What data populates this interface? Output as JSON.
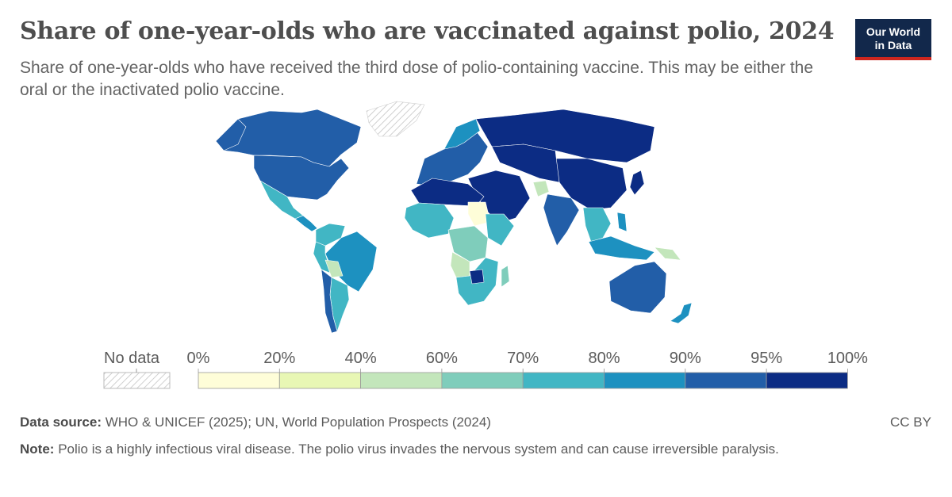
{
  "header": {
    "title": "Share of one-year-olds who are vaccinated against polio, 2024",
    "subtitle": "Share of one-year-olds who have received the third dose of polio-containing vaccine. This may be either the oral or the inactivated polio vaccine."
  },
  "logo": {
    "line1": "Our World",
    "line2": "in Data"
  },
  "legend": {
    "no_data_label": "No data",
    "ticks": [
      "0%",
      "20%",
      "40%",
      "60%",
      "70%",
      "80%",
      "90%",
      "95%",
      "100%"
    ],
    "colors": [
      "#fefdd8",
      "#e8f7b4",
      "#c3e6bb",
      "#7fcdbb",
      "#41b6c4",
      "#1d91c0",
      "#225ea8",
      "#0c2c84"
    ]
  },
  "footer": {
    "source_label": "Data source:",
    "source_text": "WHO & UNICEF (2025); UN, World Population Prospects (2024)",
    "note_label": "Note:",
    "note_text": "Polio is a highly infectious viral disease. The polio virus invades the nervous system and can cause irreversible paralysis.",
    "license": "CC BY"
  },
  "map": {
    "type": "choropleth",
    "regions": [
      {
        "name": "Canada",
        "bin": "90-95%",
        "color": "#225ea8"
      },
      {
        "name": "United States",
        "bin": "90-95%",
        "color": "#225ea8"
      },
      {
        "name": "Greenland",
        "bin": "No data",
        "color": "hatch"
      },
      {
        "name": "Mexico",
        "bin": "80-90%",
        "color": "#41b6c4"
      },
      {
        "name": "Central America",
        "bin": "80-95%",
        "color": "#1d91c0"
      },
      {
        "name": "Colombia & Venezuela",
        "bin": "80-90%",
        "color": "#41b6c4"
      },
      {
        "name": "Brazil",
        "bin": "80-90%",
        "color": "#1d91c0"
      },
      {
        "name": "Bolivia",
        "bin": "60-70%",
        "color": "#c3e6bb"
      },
      {
        "name": "Argentina",
        "bin": "80-90%",
        "color": "#41b6c4"
      },
      {
        "name": "Chile",
        "bin": "90-95%",
        "color": "#225ea8"
      },
      {
        "name": "Europe",
        "bin": "90-100%",
        "color": "#225ea8"
      },
      {
        "name": "Russia",
        "bin": "95-100%",
        "color": "#0c2c84"
      },
      {
        "name": "China",
        "bin": "95-100%",
        "color": "#0c2c84"
      },
      {
        "name": "Middle East",
        "bin": "95-100%",
        "color": "#0c2c84"
      },
      {
        "name": "India",
        "bin": "90-95%",
        "color": "#225ea8"
      },
      {
        "name": "Afghanistan",
        "bin": "60-70%",
        "color": "#c3e6bb"
      },
      {
        "name": "North Africa",
        "bin": "95-100%",
        "color": "#0c2c84"
      },
      {
        "name": "West Africa",
        "bin": "70-80%",
        "color": "#41b6c4"
      },
      {
        "name": "Sudan",
        "bin": "20-40%",
        "color": "#fefdd8"
      },
      {
        "name": "Central Africa",
        "bin": "60-80%",
        "color": "#7fcdbb"
      },
      {
        "name": "Angola",
        "bin": "40-60%",
        "color": "#c3e6bb"
      },
      {
        "name": "Southern Africa",
        "bin": "80-90%",
        "color": "#41b6c4"
      },
      {
        "name": "Zimbabwe",
        "bin": "95-100%",
        "color": "#0c2c84"
      },
      {
        "name": "Madagascar",
        "bin": "70-80%",
        "color": "#7fcdbb"
      },
      {
        "name": "Southeast Asia",
        "bin": "80-90%",
        "color": "#41b6c4"
      },
      {
        "name": "Indonesia",
        "bin": "80-90%",
        "color": "#1d91c0"
      },
      {
        "name": "Papua New Guinea",
        "bin": "40-60%",
        "color": "#c3e6bb"
      },
      {
        "name": "Australia",
        "bin": "90-95%",
        "color": "#225ea8"
      },
      {
        "name": "New Zealand",
        "bin": "80-90%",
        "color": "#1d91c0"
      }
    ]
  }
}
